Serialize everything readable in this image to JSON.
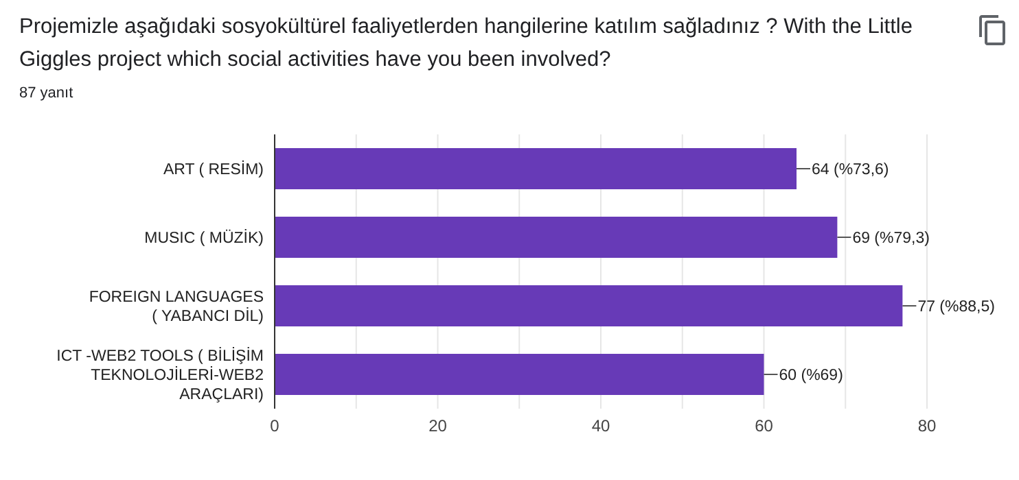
{
  "chart_data": {
    "type": "bar",
    "orientation": "horizontal",
    "title": "Projemizle aşağıdaki sosyokültürel faaliyetlerden hangilerine katılım sağladınız ? With the Little Giggles project which social activities have you been involved?",
    "subtitle": "87 yanıt",
    "categories": [
      "ART ( RESİM)",
      "MUSIC ( MÜZİK)",
      "FOREIGN LANGUAGES ( YABANCI DİL)",
      "ICT -WEB2 TOOLS ( BİLİŞİM TEKNOLOJİLERİ-WEB2 ARAÇLARI)"
    ],
    "values": [
      64,
      69,
      77,
      60
    ],
    "value_labels": [
      "64 (%73,6)",
      "69 (%79,3)",
      "77 (%88,5)",
      "60 (%69)"
    ],
    "color": "#673ab7",
    "xlim": [
      0,
      80
    ],
    "xticks": [
      0,
      {
        "value": 10,
        "label": null
      },
      20,
      {
        "value": 30,
        "label": null
      },
      40,
      {
        "value": 50,
        "label": null
      },
      60,
      {
        "value": 70,
        "label": null
      },
      80
    ],
    "grid": "x"
  }
}
